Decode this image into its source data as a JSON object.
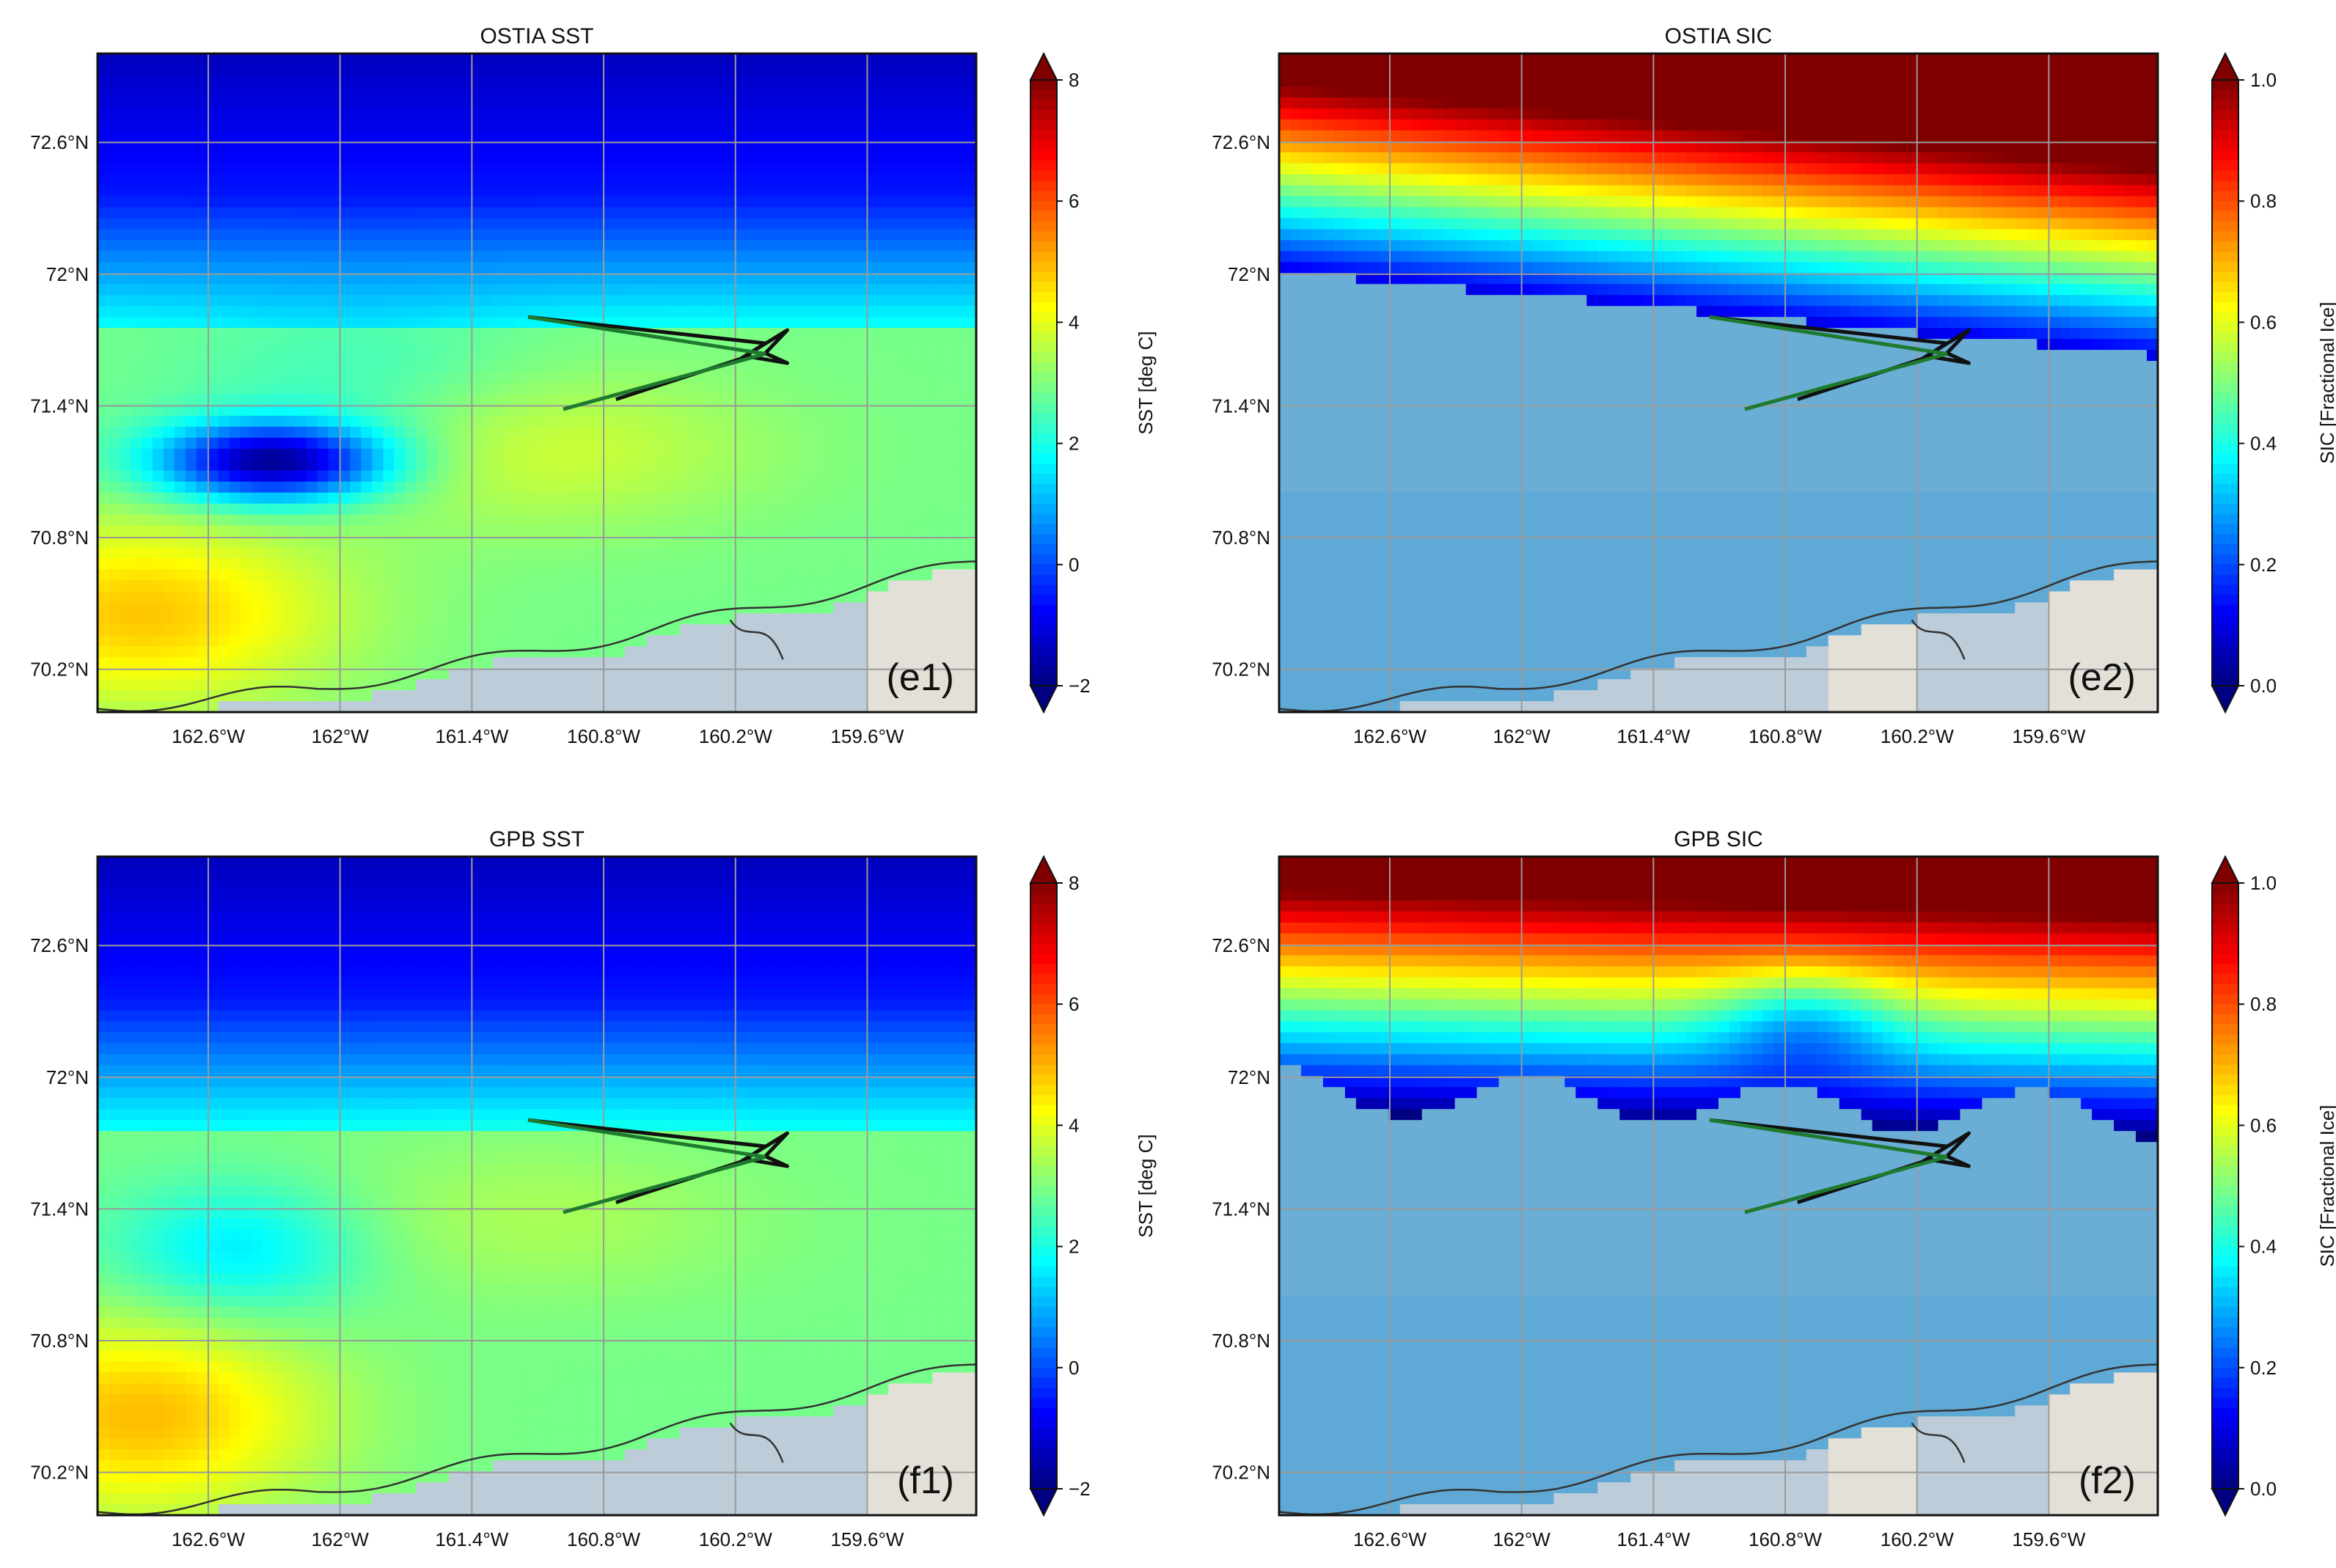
{
  "figure": {
    "panels": [
      {
        "id": "e1",
        "title": "OSTIA SST",
        "panel_label": "(e1)",
        "field": "sst",
        "variant": "ostia",
        "colorbar": {
          "label": "SST [deg C]",
          "min": -2,
          "max": 8,
          "ticks": [
            "8",
            "6",
            "4",
            "2",
            "0",
            "−2"
          ],
          "colormap": "jet"
        }
      },
      {
        "id": "e2",
        "title": "OSTIA SIC",
        "panel_label": "(e2)",
        "field": "sic",
        "variant": "ostia",
        "colorbar": {
          "label": "SIC [Fractional Ice]",
          "min": 0.0,
          "max": 1.0,
          "ticks": [
            "1.0",
            "0.8",
            "0.6",
            "0.4",
            "0.2",
            "0.0"
          ],
          "colormap": "jet_r"
        }
      },
      {
        "id": "f1",
        "title": "GPB SST",
        "panel_label": "(f1)",
        "field": "sst",
        "variant": "gpb",
        "colorbar": {
          "label": "SST [deg C]",
          "min": -2,
          "max": 8,
          "ticks": [
            "8",
            "6",
            "4",
            "2",
            "0",
            "−2"
          ],
          "colormap": "jet"
        }
      },
      {
        "id": "f2",
        "title": "GPB SIC",
        "panel_label": "(f2)",
        "field": "sic",
        "variant": "gpb",
        "colorbar": {
          "label": "SIC [Fractional Ice]",
          "min": 0.0,
          "max": 1.0,
          "ticks": [
            "1.0",
            "0.8",
            "0.6",
            "0.4",
            "0.2",
            "0.0"
          ],
          "colormap": "jet_r"
        }
      }
    ],
    "axes": {
      "lon_ticks": [
        "162.6°W",
        "162°W",
        "161.4°W",
        "160.8°W",
        "160.2°W",
        "159.6°W"
      ],
      "lat_ticks": [
        "72.6°N",
        "72°N",
        "71.4°N",
        "70.8°N",
        "70.2°N"
      ],
      "lon_range_west": [
        163.0,
        159.0
      ],
      "lat_range": [
        70.0,
        73.0
      ]
    },
    "colors": {
      "land_light": "#e3e0d8",
      "land_grey": "#bcccd8",
      "open_water_fill": "#6aaed6",
      "coastline": "#333333",
      "gridline": "#9a9a9a",
      "flight_track_dark": "#111111",
      "flight_track_green": "#1e7a2e"
    }
  }
}
